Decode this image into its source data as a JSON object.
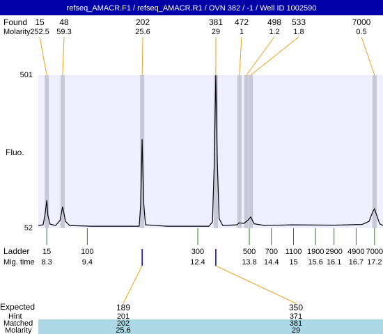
{
  "chart_data": {
    "type": "line",
    "title": "refseq_AMACR.F1 / refseq_AMACR.R1 / OVN 382 / -1 / Well ID 1002590",
    "found_label": "Found",
    "molarity_label": "Molarity",
    "y_label": "Fluo.",
    "ladder_label": "Ladder",
    "mig_time_label": "Mig. time",
    "expected_label": "Expected",
    "hint_label": "Hint",
    "matched_label": "Matched",
    "matched_molarity_label": "Molarity",
    "peaks": [
      {
        "size": 15,
        "molarity": 252.5,
        "time": 8.3
      },
      {
        "size": 48,
        "molarity": 59.3,
        "time": 8.73
      },
      {
        "size": 202,
        "molarity": 25.6,
        "time": 10.89
      },
      {
        "size": 381,
        "molarity": 29,
        "time": 12.89
      },
      {
        "size": 472,
        "molarity": 1,
        "time": 13.53
      },
      {
        "size": 498,
        "molarity": 1.2,
        "time": 13.72
      },
      {
        "size": 533,
        "molarity": 1.8,
        "time": 13.84
      },
      {
        "size": 7000,
        "molarity": 0.5,
        "time": 17.2
      }
    ],
    "ladder": [
      {
        "size": 15,
        "time": 8.3
      },
      {
        "size": 100,
        "time": 9.4
      },
      {
        "size": 300,
        "time": 12.4
      },
      {
        "size": 500,
        "time": 13.8
      },
      {
        "size": 700,
        "time": 14.4
      },
      {
        "size": 1100,
        "time": 15
      },
      {
        "size": 1900,
        "time": 15.6
      },
      {
        "size": 2900,
        "time": 16.1
      },
      {
        "size": 4900,
        "time": 16.7
      },
      {
        "size": 7000,
        "time": 17.2
      }
    ],
    "expected": [
      {
        "size": 189,
        "hint": 201,
        "matched": 202,
        "molarity": 25.6
      },
      {
        "size": 350,
        "hint": 371,
        "matched": 381,
        "molarity": 29
      }
    ],
    "xlim": [
      8.07,
      17.43
    ],
    "ylim": [
      52,
      501
    ],
    "yticks": [
      52,
      501
    ],
    "color": "#000000",
    "x": [
      8.07,
      8.2,
      8.25,
      8.3,
      8.33,
      8.39,
      8.54,
      8.66,
      8.73,
      8.81,
      8.92,
      9.49,
      10.81,
      10.85,
      10.89,
      10.93,
      10.98,
      11.57,
      12.7,
      12.8,
      12.85,
      12.89,
      12.93,
      12.98,
      13.08,
      13.46,
      13.53,
      13.65,
      13.76,
      13.84,
      13.93,
      14.22,
      14.97,
      16.11,
      16.86,
      17.05,
      17.15,
      17.2,
      17.26,
      17.34,
      17.43
    ],
    "values": [
      60,
      62,
      90,
      134,
      90,
      64,
      60,
      75,
      115,
      72,
      60,
      58,
      58,
      120,
      313,
      130,
      62,
      58,
      58,
      70,
      250,
      501,
      250,
      80,
      60,
      62,
      68,
      66,
      75,
      85,
      65,
      60,
      62,
      61,
      63,
      72,
      100,
      109,
      90,
      65,
      60
    ]
  }
}
